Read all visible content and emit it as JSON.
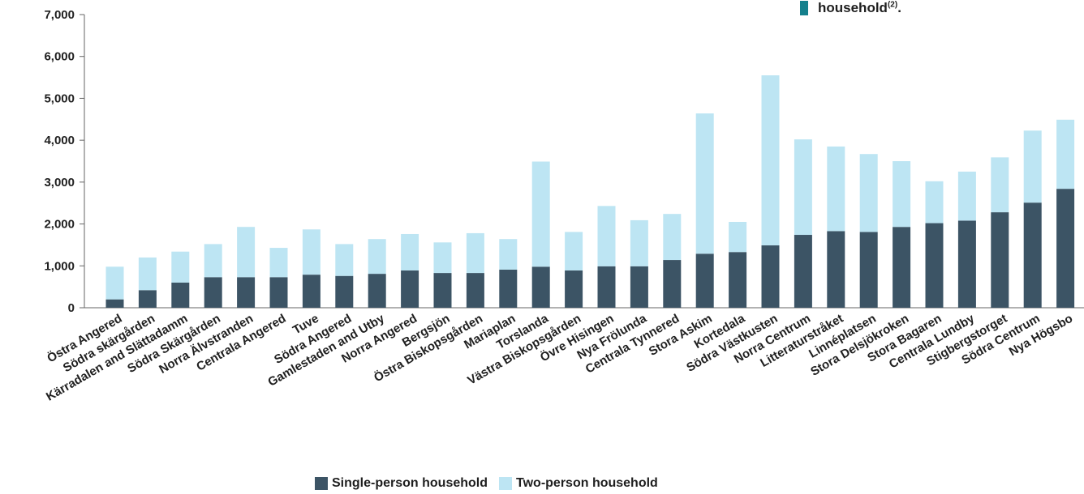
{
  "note": {
    "text": "household",
    "superscript": "(2)",
    "suffix": "."
  },
  "legend": {
    "single_label": "Single-person household",
    "two_label": "Two-person household"
  },
  "colors": {
    "single": "#3c5465",
    "two": "#bde5f3",
    "axis": "#666666",
    "note_accent": "#14808c"
  },
  "chart_data": {
    "type": "bar",
    "stacked": true,
    "ylim": [
      0,
      7000
    ],
    "yticks": [
      0,
      1000,
      2000,
      3000,
      4000,
      5000,
      6000,
      7000
    ],
    "ytick_labels": [
      "0",
      "1,000",
      "2,000",
      "3,000",
      "4,000",
      "5,000",
      "6,000",
      "7,000"
    ],
    "grid": false,
    "legend_position": "bottom",
    "categories": [
      "Östra Angered",
      "Södra skärgården",
      "Kärradalen and Slättadamm",
      "Södra Skärgården",
      "Norra Älvstranden",
      "Centrala Angered",
      "Tuve",
      "Södra Angered",
      "Gamlestaden and Utby",
      "Norra Angered",
      "Bergsjön",
      "Östra Biskopsgården",
      "Mariaplan",
      "Torslanda",
      "Västra Biskopsgården",
      "Övre Hisingen",
      "Nya Frölunda",
      "Centrala Tynnered",
      "Stora Askim",
      "Kortedala",
      "Södra Västkusten",
      "Norra Centrum",
      "Litteraturstråket",
      "Linnéplatsen",
      "Stora Delsjökroken",
      "Stora Bagaren",
      "Centrala Lundby",
      "Stigbergstorget",
      "Södra Centrum",
      "Nya Högsbo"
    ],
    "series": [
      {
        "name": "Single-person household",
        "values": [
          200,
          420,
          600,
          730,
          730,
          730,
          790,
          760,
          810,
          890,
          830,
          830,
          910,
          980,
          890,
          990,
          990,
          1140,
          1290,
          1330,
          1490,
          1740,
          1830,
          1810,
          1930,
          2020,
          2080,
          2280,
          2510,
          2840
        ]
      },
      {
        "name": "Two-person household",
        "values": [
          780,
          780,
          740,
          790,
          1200,
          700,
          1080,
          760,
          830,
          870,
          730,
          950,
          730,
          2510,
          920,
          1440,
          1100,
          1100,
          3350,
          720,
          4060,
          2280,
          2020,
          1860,
          1570,
          1000,
          1170,
          1310,
          1720,
          1650
        ]
      }
    ]
  }
}
